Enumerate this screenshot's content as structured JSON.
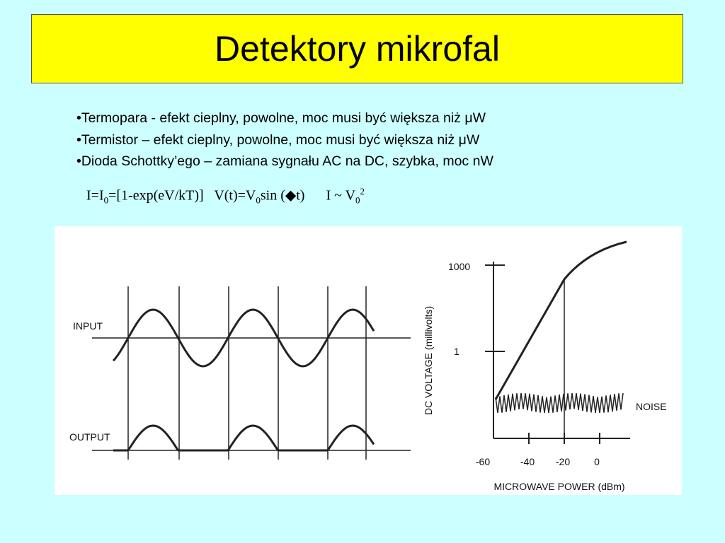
{
  "header": {
    "title": "Detektory mikrofal"
  },
  "bullets": [
    "•Termopara - efekt cieplny, powolne, moc musi być większa niż μW",
    "•Termistor – efekt cieplny, powolne, moc musi być większa niż μW",
    "•Dioda Schottky’ego – zamiana sygnału AC na DC, szybka, moc nW"
  ],
  "formula": {
    "f1": {
      "a": "I=I",
      "sub": "0",
      "b": "=[1-exp(eV/kT)]"
    },
    "f2": {
      "a": "V(t)=V",
      "sub": "0",
      "b": "sin (◆t)"
    },
    "f3": {
      "a": "I ~ V",
      "sub": "0",
      "sup": "2"
    }
  },
  "figure": {
    "left": {
      "input_label": "INPUT",
      "output_label": "OUTPUT"
    },
    "right": {
      "y_label": "DC VOLTAGE (millivolts)",
      "y_ticks": [
        "1000",
        "1"
      ],
      "x_ticks": [
        "-60",
        "-40",
        "-20",
        "0"
      ],
      "x_label": "MICROWAVE POWER (dBm)",
      "noise_label": "NOISE"
    }
  }
}
